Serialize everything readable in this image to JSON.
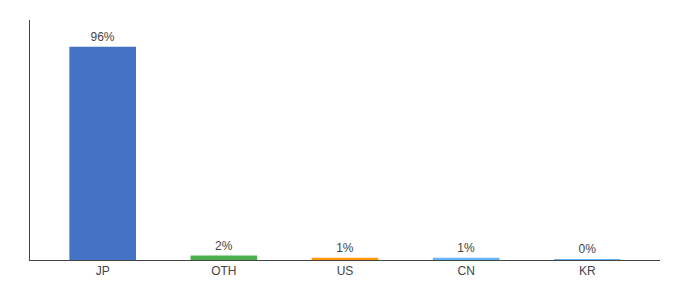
{
  "chart_data": {
    "type": "bar",
    "categories": [
      "JP",
      "OTH",
      "US",
      "CN",
      "KR"
    ],
    "values": [
      96,
      2,
      1,
      1,
      0.15
    ],
    "value_labels": [
      "96%",
      "2%",
      "1%",
      "1%",
      "0%"
    ],
    "colors": [
      "#4472C4",
      "#4CAF50",
      "#FF9800",
      "#64B5F6",
      "#64B5F6"
    ],
    "ylim": [
      0,
      108
    ],
    "data_labels": true,
    "tick_labels": "x",
    "grid": false
  }
}
